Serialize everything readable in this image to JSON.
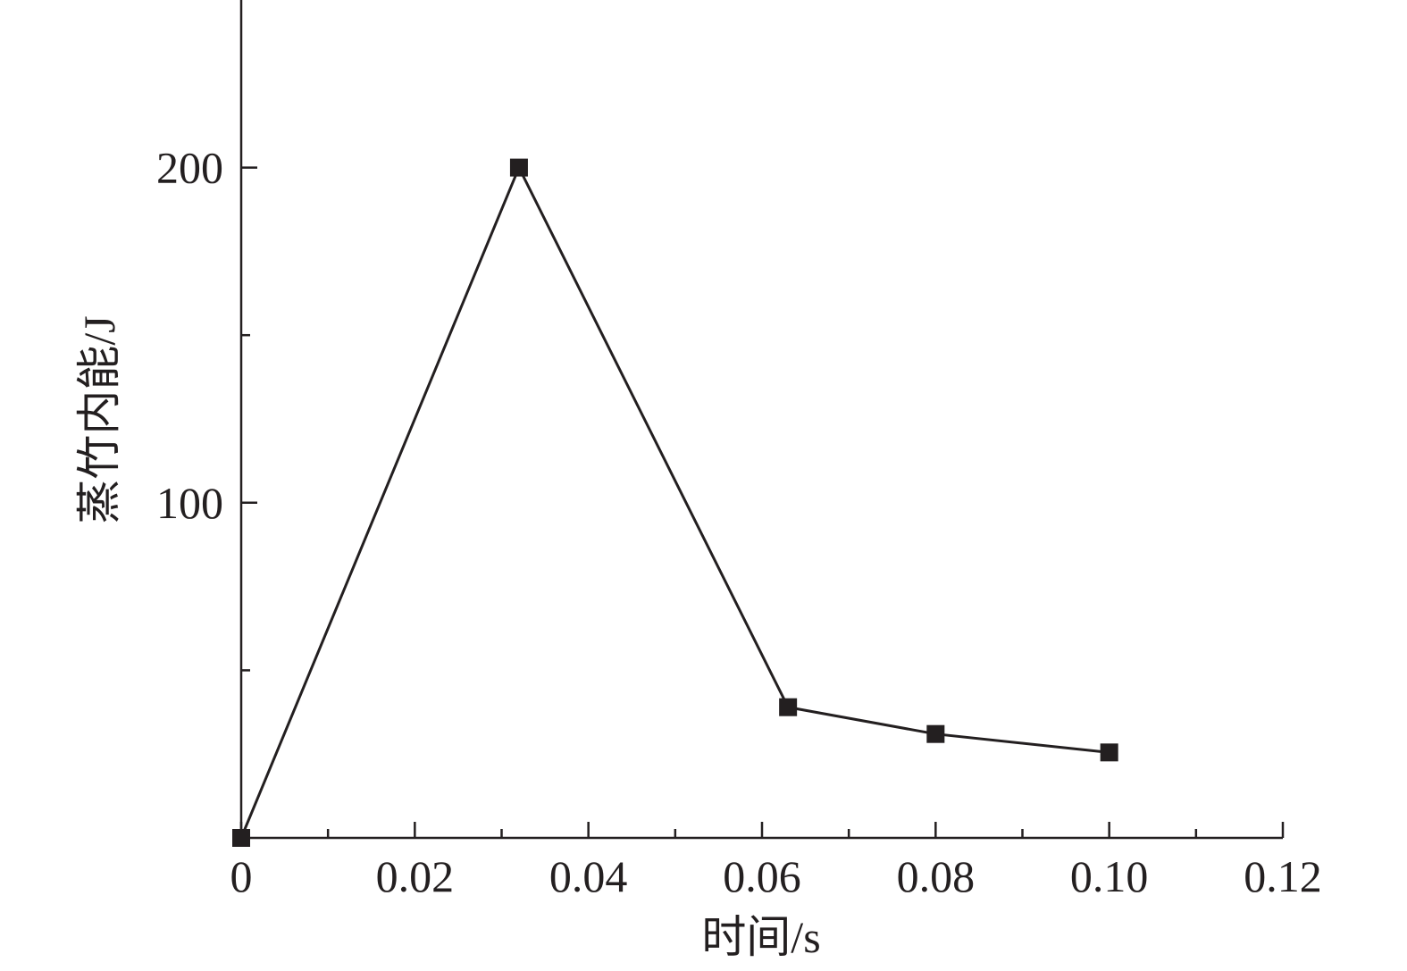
{
  "chart_data": {
    "type": "line",
    "x_label": "时间/s",
    "y_label": "蒸竹内能/J",
    "x": [
      0,
      0.032,
      0.063,
      0.08,
      0.1
    ],
    "series": [
      {
        "values": [
          0,
          200,
          39,
          31,
          25.5
        ],
        "color": "#231f20"
      }
    ],
    "xlim": [
      0,
      0.12
    ],
    "xticks": [
      0,
      0.02,
      0.04,
      0.06,
      0.08,
      {
        "value": 0.1,
        "label": "0.10"
      },
      0.12
    ],
    "xminor": [
      0.01,
      0.03,
      0.05,
      0.07,
      0.09,
      0.11
    ],
    "ylim": [
      0,
      250
    ],
    "yticks": [
      100,
      200
    ],
    "yminor": [
      50,
      150
    ],
    "grid": false
  }
}
